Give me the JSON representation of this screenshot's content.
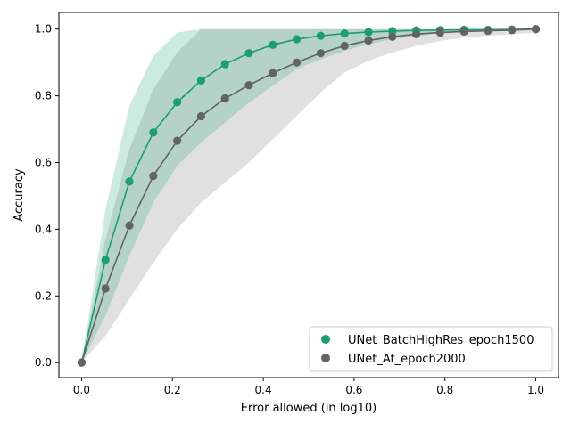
{
  "chart_data": {
    "type": "line",
    "title": "",
    "xlabel": "Error allowed (in log10)",
    "ylabel": "Accuracy",
    "xlim": [
      -0.05,
      1.05
    ],
    "ylim": [
      -0.045,
      1.05
    ],
    "xticks": [
      0.0,
      0.2,
      0.4,
      0.6,
      0.8,
      1.0
    ],
    "xtick_labels": [
      "0.0",
      "0.2",
      "0.4",
      "0.6",
      "0.8",
      "1.0"
    ],
    "yticks": [
      0.0,
      0.2,
      0.4,
      0.6,
      0.8,
      1.0
    ],
    "ytick_labels": [
      "0.0",
      "0.2",
      "0.4",
      "0.6",
      "0.8",
      "1.0"
    ],
    "grid": false,
    "legend_position": "lower-right",
    "x": [
      0.0,
      0.0526,
      0.1053,
      0.1579,
      0.2105,
      0.2632,
      0.3158,
      0.3684,
      0.4211,
      0.4737,
      0.5263,
      0.5789,
      0.6316,
      0.6842,
      0.7368,
      0.7895,
      0.8421,
      0.8947,
      0.9474,
      1.0
    ],
    "series": [
      {
        "name": "UNet_BatchHighRes_epoch1500",
        "color": "#1b9e77",
        "values": [
          0.0,
          0.308,
          0.543,
          0.69,
          0.781,
          0.846,
          0.895,
          0.928,
          0.953,
          0.97,
          0.98,
          0.987,
          0.991,
          0.994,
          0.996,
          0.997,
          0.998,
          0.998,
          0.999,
          1.0
        ],
        "band_low": [
          0.0,
          0.14,
          0.32,
          0.48,
          0.59,
          0.66,
          0.72,
          0.78,
          0.83,
          0.88,
          0.91,
          0.935,
          0.955,
          0.97,
          0.98,
          0.987,
          0.99,
          0.993,
          0.996,
          1.0
        ],
        "band_high": [
          0.0,
          0.46,
          0.77,
          0.92,
          0.99,
          1.0,
          1.0,
          1.0,
          1.0,
          1.0,
          1.0,
          1.0,
          1.0,
          1.0,
          1.0,
          1.0,
          1.0,
          1.0,
          1.0,
          1.0
        ]
      },
      {
        "name": "UNet_At_epoch2000",
        "color": "#636363",
        "values": [
          0.0,
          0.222,
          0.411,
          0.56,
          0.665,
          0.739,
          0.792,
          0.832,
          0.868,
          0.9,
          0.928,
          0.95,
          0.966,
          0.977,
          0.985,
          0.99,
          0.993,
          0.995,
          0.997,
          1.0
        ],
        "band_low": [
          0.0,
          0.08,
          0.19,
          0.3,
          0.4,
          0.48,
          0.54,
          0.6,
          0.67,
          0.74,
          0.81,
          0.87,
          0.905,
          0.93,
          0.95,
          0.965,
          0.975,
          0.98,
          0.985,
          0.99
        ],
        "band_high": [
          0.0,
          0.37,
          0.64,
          0.82,
          0.93,
          1.0,
          1.0,
          1.0,
          1.0,
          1.0,
          1.0,
          1.0,
          1.0,
          1.0,
          1.0,
          1.0,
          1.0,
          1.0,
          1.0,
          1.0
        ]
      }
    ]
  }
}
